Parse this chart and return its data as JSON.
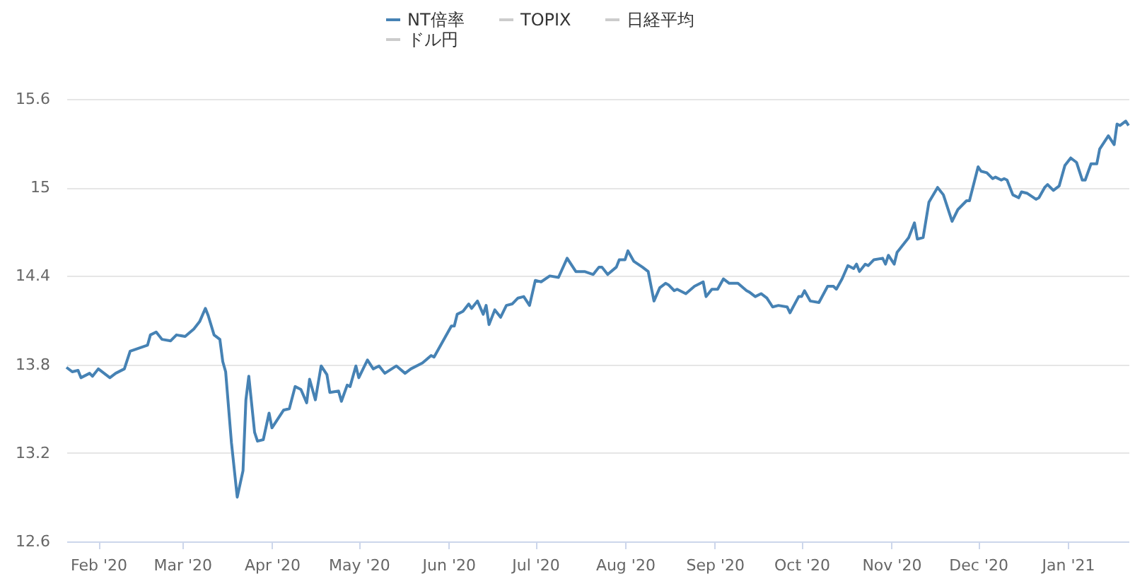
{
  "chart_data": {
    "type": "line",
    "legend": "top",
    "grid": "y",
    "ylim": [
      12.6,
      15.6
    ],
    "yticks": [
      12.6,
      13.2,
      13.8,
      14.4,
      15,
      15.6
    ],
    "xlim": [
      "2020-01-21",
      "2021-01-22"
    ],
    "xticks": [
      {
        "value": "2020-02-01",
        "label": "Feb '20"
      },
      {
        "value": "2020-03-01",
        "label": "Mar '20"
      },
      {
        "value": "2020-04-01",
        "label": "Apr '20"
      },
      {
        "value": "2020-05-01",
        "label": "May '20"
      },
      {
        "value": "2020-06-01",
        "label": "Jun '20"
      },
      {
        "value": "2020-07-01",
        "label": "Jul '20"
      },
      {
        "value": "2020-08-01",
        "label": "Aug '20"
      },
      {
        "value": "2020-09-01",
        "label": "Sep '20"
      },
      {
        "value": "2020-10-01",
        "label": "Oct '20"
      },
      {
        "value": "2020-11-01",
        "label": "Nov '20"
      },
      {
        "value": "2020-12-01",
        "label": "Dec '20"
      },
      {
        "value": "2021-01-01",
        "label": "Jan '21"
      }
    ],
    "x": [
      "2020-01-21",
      "2020-01-23",
      "2020-01-25",
      "2020-01-26",
      "2020-01-29",
      "2020-01-30",
      "2020-02-01",
      "2020-02-05",
      "2020-02-07",
      "2020-02-10",
      "2020-02-12",
      "2020-02-15",
      "2020-02-18",
      "2020-02-19",
      "2020-02-21",
      "2020-02-23",
      "2020-02-26",
      "2020-02-28",
      "2020-03-02",
      "2020-03-05",
      "2020-03-07",
      "2020-03-09",
      "2020-03-10",
      "2020-03-12",
      "2020-03-14",
      "2020-03-15",
      "2020-03-16",
      "2020-03-18",
      "2020-03-20",
      "2020-03-22",
      "2020-03-23",
      "2020-03-24",
      "2020-03-26",
      "2020-03-27",
      "2020-03-29",
      "2020-03-31",
      "2020-04-01",
      "2020-04-03",
      "2020-04-05",
      "2020-04-07",
      "2020-04-09",
      "2020-04-11",
      "2020-04-13",
      "2020-04-14",
      "2020-04-16",
      "2020-04-18",
      "2020-04-20",
      "2020-04-21",
      "2020-04-24",
      "2020-04-25",
      "2020-04-27",
      "2020-04-28",
      "2020-04-30",
      "2020-05-01",
      "2020-05-03",
      "2020-05-04",
      "2020-05-06",
      "2020-05-08",
      "2020-05-10",
      "2020-05-14",
      "2020-05-17",
      "2020-05-19",
      "2020-05-23",
      "2020-05-26",
      "2020-05-27",
      "2020-06-02",
      "2020-06-03",
      "2020-06-04",
      "2020-06-06",
      "2020-06-08",
      "2020-06-09",
      "2020-06-11",
      "2020-06-13",
      "2020-06-14",
      "2020-06-15",
      "2020-06-17",
      "2020-06-19",
      "2020-06-21",
      "2020-06-23",
      "2020-06-25",
      "2020-06-27",
      "2020-06-29",
      "2020-07-01",
      "2020-07-03",
      "2020-07-06",
      "2020-07-09",
      "2020-07-12",
      "2020-07-15",
      "2020-07-18",
      "2020-07-21",
      "2020-07-23",
      "2020-07-24",
      "2020-07-26",
      "2020-07-29",
      "2020-07-30",
      "2020-08-01",
      "2020-08-02",
      "2020-08-04",
      "2020-08-07",
      "2020-08-09",
      "2020-08-11",
      "2020-08-13",
      "2020-08-15",
      "2020-08-16",
      "2020-08-18",
      "2020-08-19",
      "2020-08-22",
      "2020-08-25",
      "2020-08-28",
      "2020-08-29",
      "2020-08-31",
      "2020-09-02",
      "2020-09-04",
      "2020-09-06",
      "2020-09-09",
      "2020-09-12",
      "2020-09-13",
      "2020-09-15",
      "2020-09-17",
      "2020-09-19",
      "2020-09-21",
      "2020-09-23",
      "2020-09-26",
      "2020-09-27",
      "2020-09-30",
      "2020-10-01",
      "2020-10-02",
      "2020-10-04",
      "2020-10-07",
      "2020-10-10",
      "2020-10-12",
      "2020-10-13",
      "2020-10-15",
      "2020-10-17",
      "2020-10-19",
      "2020-10-20",
      "2020-10-21",
      "2020-10-23",
      "2020-10-24",
      "2020-10-26",
      "2020-10-29",
      "2020-10-30",
      "2020-10-31",
      "2020-11-02",
      "2020-11-03",
      "2020-11-07",
      "2020-11-09",
      "2020-11-10",
      "2020-11-12",
      "2020-11-14",
      "2020-11-17",
      "2020-11-19",
      "2020-11-22",
      "2020-11-24",
      "2020-11-27",
      "2020-11-28",
      "2020-12-01",
      "2020-12-02",
      "2020-12-04",
      "2020-12-06",
      "2020-12-07",
      "2020-12-09",
      "2020-12-10",
      "2020-12-11",
      "2020-12-13",
      "2020-12-15",
      "2020-12-16",
      "2020-12-18",
      "2020-12-21",
      "2020-12-22",
      "2020-12-24",
      "2020-12-25",
      "2020-12-27",
      "2020-12-29",
      "2020-12-31",
      "2021-01-02",
      "2021-01-04",
      "2021-01-06",
      "2021-01-07",
      "2021-01-09",
      "2021-01-11",
      "2021-01-12",
      "2021-01-15",
      "2021-01-17",
      "2021-01-18",
      "2021-01-19",
      "2021-01-21",
      "2021-01-22"
    ],
    "series": [
      {
        "name": "NT倍率",
        "color": "#4682b4",
        "values": [
          13.78,
          13.75,
          13.76,
          13.71,
          13.74,
          13.72,
          13.77,
          13.71,
          13.74,
          13.77,
          13.89,
          13.91,
          13.93,
          14.0,
          14.02,
          13.97,
          13.96,
          14.0,
          13.99,
          14.04,
          14.09,
          14.18,
          14.13,
          14.0,
          13.97,
          13.82,
          13.75,
          13.27,
          12.9,
          13.08,
          13.56,
          13.72,
          13.34,
          13.28,
          13.29,
          13.47,
          13.37,
          13.43,
          13.49,
          13.5,
          13.65,
          13.63,
          13.54,
          13.7,
          13.56,
          13.79,
          13.73,
          13.61,
          13.62,
          13.55,
          13.66,
          13.65,
          13.79,
          13.71,
          13.79,
          13.83,
          13.77,
          13.79,
          13.74,
          13.79,
          13.74,
          13.77,
          13.81,
          13.86,
          13.85,
          14.06,
          14.06,
          14.14,
          14.16,
          14.21,
          14.18,
          14.23,
          14.14,
          14.2,
          14.07,
          14.17,
          14.12,
          14.2,
          14.21,
          14.25,
          14.26,
          14.2,
          14.37,
          14.36,
          14.4,
          14.39,
          14.52,
          14.43,
          14.43,
          14.41,
          14.46,
          14.46,
          14.41,
          14.46,
          14.51,
          14.51,
          14.57,
          14.5,
          14.46,
          14.43,
          14.23,
          14.32,
          14.35,
          14.34,
          14.3,
          14.31,
          14.28,
          14.33,
          14.36,
          14.26,
          14.31,
          14.31,
          14.38,
          14.35,
          14.35,
          14.3,
          14.29,
          14.26,
          14.28,
          14.25,
          14.19,
          14.2,
          14.19,
          14.15,
          14.26,
          14.26,
          14.3,
          14.23,
          14.22,
          14.33,
          14.33,
          14.31,
          14.38,
          14.47,
          14.45,
          14.48,
          14.43,
          14.48,
          14.47,
          14.51,
          14.52,
          14.48,
          14.54,
          14.48,
          14.56,
          14.66,
          14.76,
          14.65,
          14.66,
          14.9,
          15.0,
          14.95,
          14.77,
          14.85,
          14.91,
          14.91,
          15.14,
          15.11,
          15.1,
          15.06,
          15.07,
          15.05,
          15.06,
          15.05,
          14.95,
          14.93,
          14.97,
          14.96,
          14.92,
          14.93,
          15.0,
          15.02,
          14.98,
          15.01,
          15.15,
          15.2,
          15.17,
          15.05,
          15.05,
          15.16,
          15.16,
          15.26,
          15.35,
          15.29,
          15.43,
          15.42,
          15.45,
          15.42
        ]
      },
      {
        "name": "TOPIX",
        "color": "#cccccc",
        "values": [
          null,
          null,
          null,
          null,
          null,
          null,
          null,
          null,
          null,
          null,
          null,
          null,
          null,
          null,
          null,
          null,
          null,
          null,
          null,
          null,
          null,
          null,
          null,
          null,
          null,
          null,
          null,
          null,
          null,
          null,
          null,
          null,
          null,
          null,
          null,
          null,
          null,
          null,
          null,
          null,
          null,
          null,
          null,
          null,
          null,
          null,
          null,
          null,
          null,
          null,
          null,
          null,
          null,
          null,
          null,
          null,
          null,
          null,
          null,
          null,
          null,
          null,
          null,
          null,
          null,
          null,
          null,
          null,
          null,
          null,
          null,
          null,
          null,
          null,
          null,
          null,
          null,
          null,
          null,
          null,
          null,
          null,
          null,
          null,
          null,
          null,
          null,
          null,
          null,
          null,
          null,
          null,
          null,
          null,
          null,
          null,
          null,
          null,
          null,
          null,
          null,
          null,
          null,
          null,
          null,
          null,
          null,
          null,
          null,
          null,
          null,
          null,
          null,
          null,
          null,
          null,
          null,
          null,
          null,
          null,
          null,
          null,
          null,
          null,
          null,
          null,
          null,
          null,
          null,
          null,
          null,
          null,
          null,
          null,
          null,
          null,
          null,
          null,
          null,
          null,
          null,
          null,
          null,
          null,
          null,
          null,
          null,
          null,
          null,
          null,
          null,
          null,
          null,
          null,
          null,
          null,
          null,
          null,
          null,
          null,
          null,
          null,
          null,
          null,
          null,
          null,
          null,
          null,
          null,
          null,
          null,
          null,
          null,
          null,
          null,
          null,
          null,
          null,
          null,
          null,
          null,
          null,
          null,
          null,
          null,
          null,
          null,
          null
        ]
      },
      {
        "name": "日経平均",
        "color": "#cccccc",
        "values": [
          null,
          null,
          null,
          null,
          null,
          null,
          null,
          null,
          null,
          null,
          null,
          null,
          null,
          null,
          null,
          null,
          null,
          null,
          null,
          null,
          null,
          null,
          null,
          null,
          null,
          null,
          null,
          null,
          null,
          null,
          null,
          null,
          null,
          null,
          null,
          null,
          null,
          null,
          null,
          null,
          null,
          null,
          null,
          null,
          null,
          null,
          null,
          null,
          null,
          null,
          null,
          null,
          null,
          null,
          null,
          null,
          null,
          null,
          null,
          null,
          null,
          null,
          null,
          null,
          null,
          null,
          null,
          null,
          null,
          null,
          null,
          null,
          null,
          null,
          null,
          null,
          null,
          null,
          null,
          null,
          null,
          null,
          null,
          null,
          null,
          null,
          null,
          null,
          null,
          null,
          null,
          null,
          null,
          null,
          null,
          null,
          null,
          null,
          null,
          null,
          null,
          null,
          null,
          null,
          null,
          null,
          null,
          null,
          null,
          null,
          null,
          null,
          null,
          null,
          null,
          null,
          null,
          null,
          null,
          null,
          null,
          null,
          null,
          null,
          null,
          null,
          null,
          null,
          null,
          null,
          null,
          null,
          null,
          null,
          null,
          null,
          null,
          null,
          null,
          null,
          null,
          null,
          null,
          null,
          null,
          null,
          null,
          null,
          null,
          null,
          null,
          null,
          null,
          null,
          null,
          null,
          null,
          null,
          null,
          null,
          null,
          null,
          null,
          null,
          null,
          null,
          null,
          null,
          null,
          null,
          null,
          null,
          null,
          null,
          null,
          null,
          null,
          null,
          null,
          null,
          null,
          null,
          null,
          null,
          null,
          null,
          null,
          null
        ]
      },
      {
        "name": "ドル円",
        "color": "#cccccc",
        "values": [
          null,
          null,
          null,
          null,
          null,
          null,
          null,
          null,
          null,
          null,
          null,
          null,
          null,
          null,
          null,
          null,
          null,
          null,
          null,
          null,
          null,
          null,
          null,
          null,
          null,
          null,
          null,
          null,
          null,
          null,
          null,
          null,
          null,
          null,
          null,
          null,
          null,
          null,
          null,
          null,
          null,
          null,
          null,
          null,
          null,
          null,
          null,
          null,
          null,
          null,
          null,
          null,
          null,
          null,
          null,
          null,
          null,
          null,
          null,
          null,
          null,
          null,
          null,
          null,
          null,
          null,
          null,
          null,
          null,
          null,
          null,
          null,
          null,
          null,
          null,
          null,
          null,
          null,
          null,
          null,
          null,
          null,
          null,
          null,
          null,
          null,
          null,
          null,
          null,
          null,
          null,
          null,
          null,
          null,
          null,
          null,
          null,
          null,
          null,
          null,
          null,
          null,
          null,
          null,
          null,
          null,
          null,
          null,
          null,
          null,
          null,
          null,
          null,
          null,
          null,
          null,
          null,
          null,
          null,
          null,
          null,
          null,
          null,
          null,
          null,
          null,
          null,
          null,
          null,
          null,
          null,
          null,
          null,
          null,
          null,
          null,
          null,
          null,
          null,
          null,
          null,
          null,
          null,
          null,
          null,
          null,
          null,
          null,
          null,
          null,
          null,
          null,
          null,
          null,
          null,
          null,
          null,
          null,
          null,
          null,
          null,
          null,
          null,
          null,
          null,
          null,
          null,
          null,
          null,
          null,
          null,
          null,
          null,
          null,
          null,
          null,
          null,
          null,
          null,
          null,
          null,
          null,
          null,
          null,
          null,
          null,
          null,
          null
        ]
      }
    ]
  }
}
